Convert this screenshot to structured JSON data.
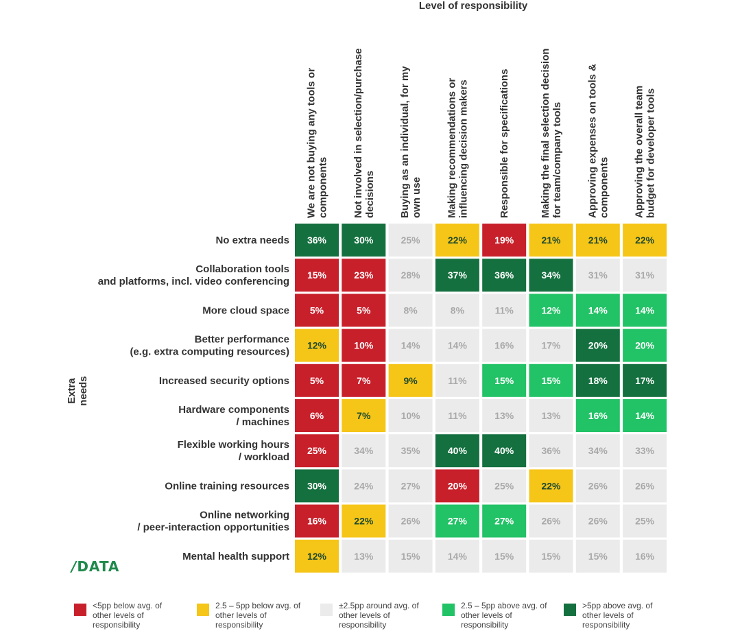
{
  "chart_data": {
    "type": "heatmap",
    "title": "Level of responsibility",
    "ylabel": "Extra needs",
    "columns": [
      "We are not buying any tools or components",
      "Not involved in selection/purchase decisions",
      "Buying as an individual, for my own use",
      "Making recommendations or influencing decision makers",
      "Responsible for specifications",
      "Making the final selection decision for team/company tools",
      "Approving expenses on tools & components",
      "Approving the overall team budget for developer tools"
    ],
    "rows": [
      "No extra needs",
      "Collaboration tools and platforms, incl. video conferencing",
      "More cloud space",
      "Better performance (e.g. extra computing resources)",
      "Increased security options",
      "Hardware components / machines",
      "Flexible working hours / workload",
      "Online training resources",
      "Online networking / peer-interaction opportunities",
      "Mental health support"
    ],
    "row_lines": [
      [
        "No extra needs"
      ],
      [
        "Collaboration tools",
        "and platforms, incl. video conferencing"
      ],
      [
        "More cloud space"
      ],
      [
        "Better performance",
        "(e.g. extra computing resources)"
      ],
      [
        "Increased security options"
      ],
      [
        "Hardware components",
        "/ machines"
      ],
      [
        "Flexible working hours",
        "/ workload"
      ],
      [
        "Online training resources"
      ],
      [
        "Online networking",
        "/ peer-interaction opportunities"
      ],
      [
        "Mental health support"
      ]
    ],
    "column_lines": [
      [
        "We are not buying any tools or",
        "components"
      ],
      [
        "Not involved in selection/purchase",
        "decisions"
      ],
      [
        "Buying as an individual, for my",
        "own use"
      ],
      [
        "Making recommendations or",
        "influencing decision makers"
      ],
      [
        "Responsible for specifications"
      ],
      [
        "Making the final selection decision",
        "for team/company tools"
      ],
      [
        "Approving expenses on tools &",
        "components"
      ],
      [
        "Approving the overall team",
        "budget for developer tools"
      ]
    ],
    "values": [
      [
        36,
        30,
        25,
        22,
        19,
        21,
        21,
        22
      ],
      [
        15,
        23,
        28,
        37,
        36,
        34,
        31,
        31
      ],
      [
        5,
        5,
        8,
        8,
        11,
        12,
        14,
        14
      ],
      [
        12,
        10,
        14,
        14,
        16,
        17,
        20,
        20
      ],
      [
        5,
        7,
        9,
        11,
        15,
        15,
        18,
        17
      ],
      [
        6,
        7,
        10,
        11,
        13,
        13,
        16,
        14
      ],
      [
        25,
        34,
        35,
        40,
        40,
        36,
        34,
        33
      ],
      [
        30,
        24,
        27,
        20,
        25,
        22,
        26,
        26
      ],
      [
        16,
        22,
        26,
        27,
        27,
        26,
        26,
        25
      ],
      [
        12,
        13,
        15,
        14,
        15,
        15,
        15,
        16
      ]
    ],
    "categories_matrix": [
      [
        "dg",
        "dg",
        "gr",
        "ye",
        "re",
        "ye",
        "ye",
        "ye"
      ],
      [
        "re",
        "re",
        "gr",
        "dg",
        "dg",
        "dg",
        "gr",
        "gr"
      ],
      [
        "re",
        "re",
        "gr",
        "gr",
        "gr",
        "lg",
        "lg",
        "lg"
      ],
      [
        "ye",
        "re",
        "gr",
        "gr",
        "gr",
        "gr",
        "dg",
        "lg"
      ],
      [
        "re",
        "re",
        "ye",
        "gr",
        "lg",
        "lg",
        "dg",
        "dg"
      ],
      [
        "re",
        "ye",
        "gr",
        "gr",
        "gr",
        "gr",
        "lg",
        "lg"
      ],
      [
        "re",
        "gr",
        "gr",
        "dg",
        "dg",
        "gr",
        "gr",
        "gr"
      ],
      [
        "dg",
        "gr",
        "gr",
        "re",
        "gr",
        "ye",
        "gr",
        "gr"
      ],
      [
        "re",
        "ye",
        "gr",
        "lg",
        "lg",
        "gr",
        "gr",
        "gr"
      ],
      [
        "ye",
        "gr",
        "gr",
        "gr",
        "gr",
        "gr",
        "gr",
        "gr"
      ]
    ],
    "value_suffix": "%",
    "legend_placement": "bottom",
    "legend": [
      {
        "key": "re",
        "label": "<5pp below avg. of other levels of responsibility",
        "lines": [
          "<5pp below avg. of",
          "other levels of",
          "responsibility"
        ],
        "color": "#c8202b",
        "text_color": "#ffffff"
      },
      {
        "key": "ye",
        "label": "2.5 – 5pp below avg. of other levels of responsibility",
        "lines": [
          "2.5 – 5pp below avg. of",
          "other levels of",
          "responsibility"
        ],
        "color": "#f5c518",
        "text_color": "#1f4a2c"
      },
      {
        "key": "gr",
        "label": "±2.5pp around avg. of other levels of responsibility",
        "lines": [
          "±2.5pp around avg. of",
          "other levels of",
          "responsibility"
        ],
        "color": "#ebebeb",
        "text_color": "#a9a9a9"
      },
      {
        "key": "lg",
        "label": "2.5 – 5pp above avg. of other levels of responsibility",
        "lines": [
          "2.5 – 5pp above avg. of",
          "other levels of",
          "responsibility"
        ],
        "color": "#22c266",
        "text_color": "#ffffff"
      },
      {
        "key": "dg",
        "label": ">5pp above avg. of other levels of responsibility",
        "lines": [
          ">5pp above avg. of",
          "other levels of",
          "responsibility"
        ],
        "color": "#14703f",
        "text_color": "#ffffff"
      }
    ]
  },
  "brand": {
    "logo_slash": "/",
    "logo_text": "DATA",
    "color": "#1f8a4c"
  }
}
